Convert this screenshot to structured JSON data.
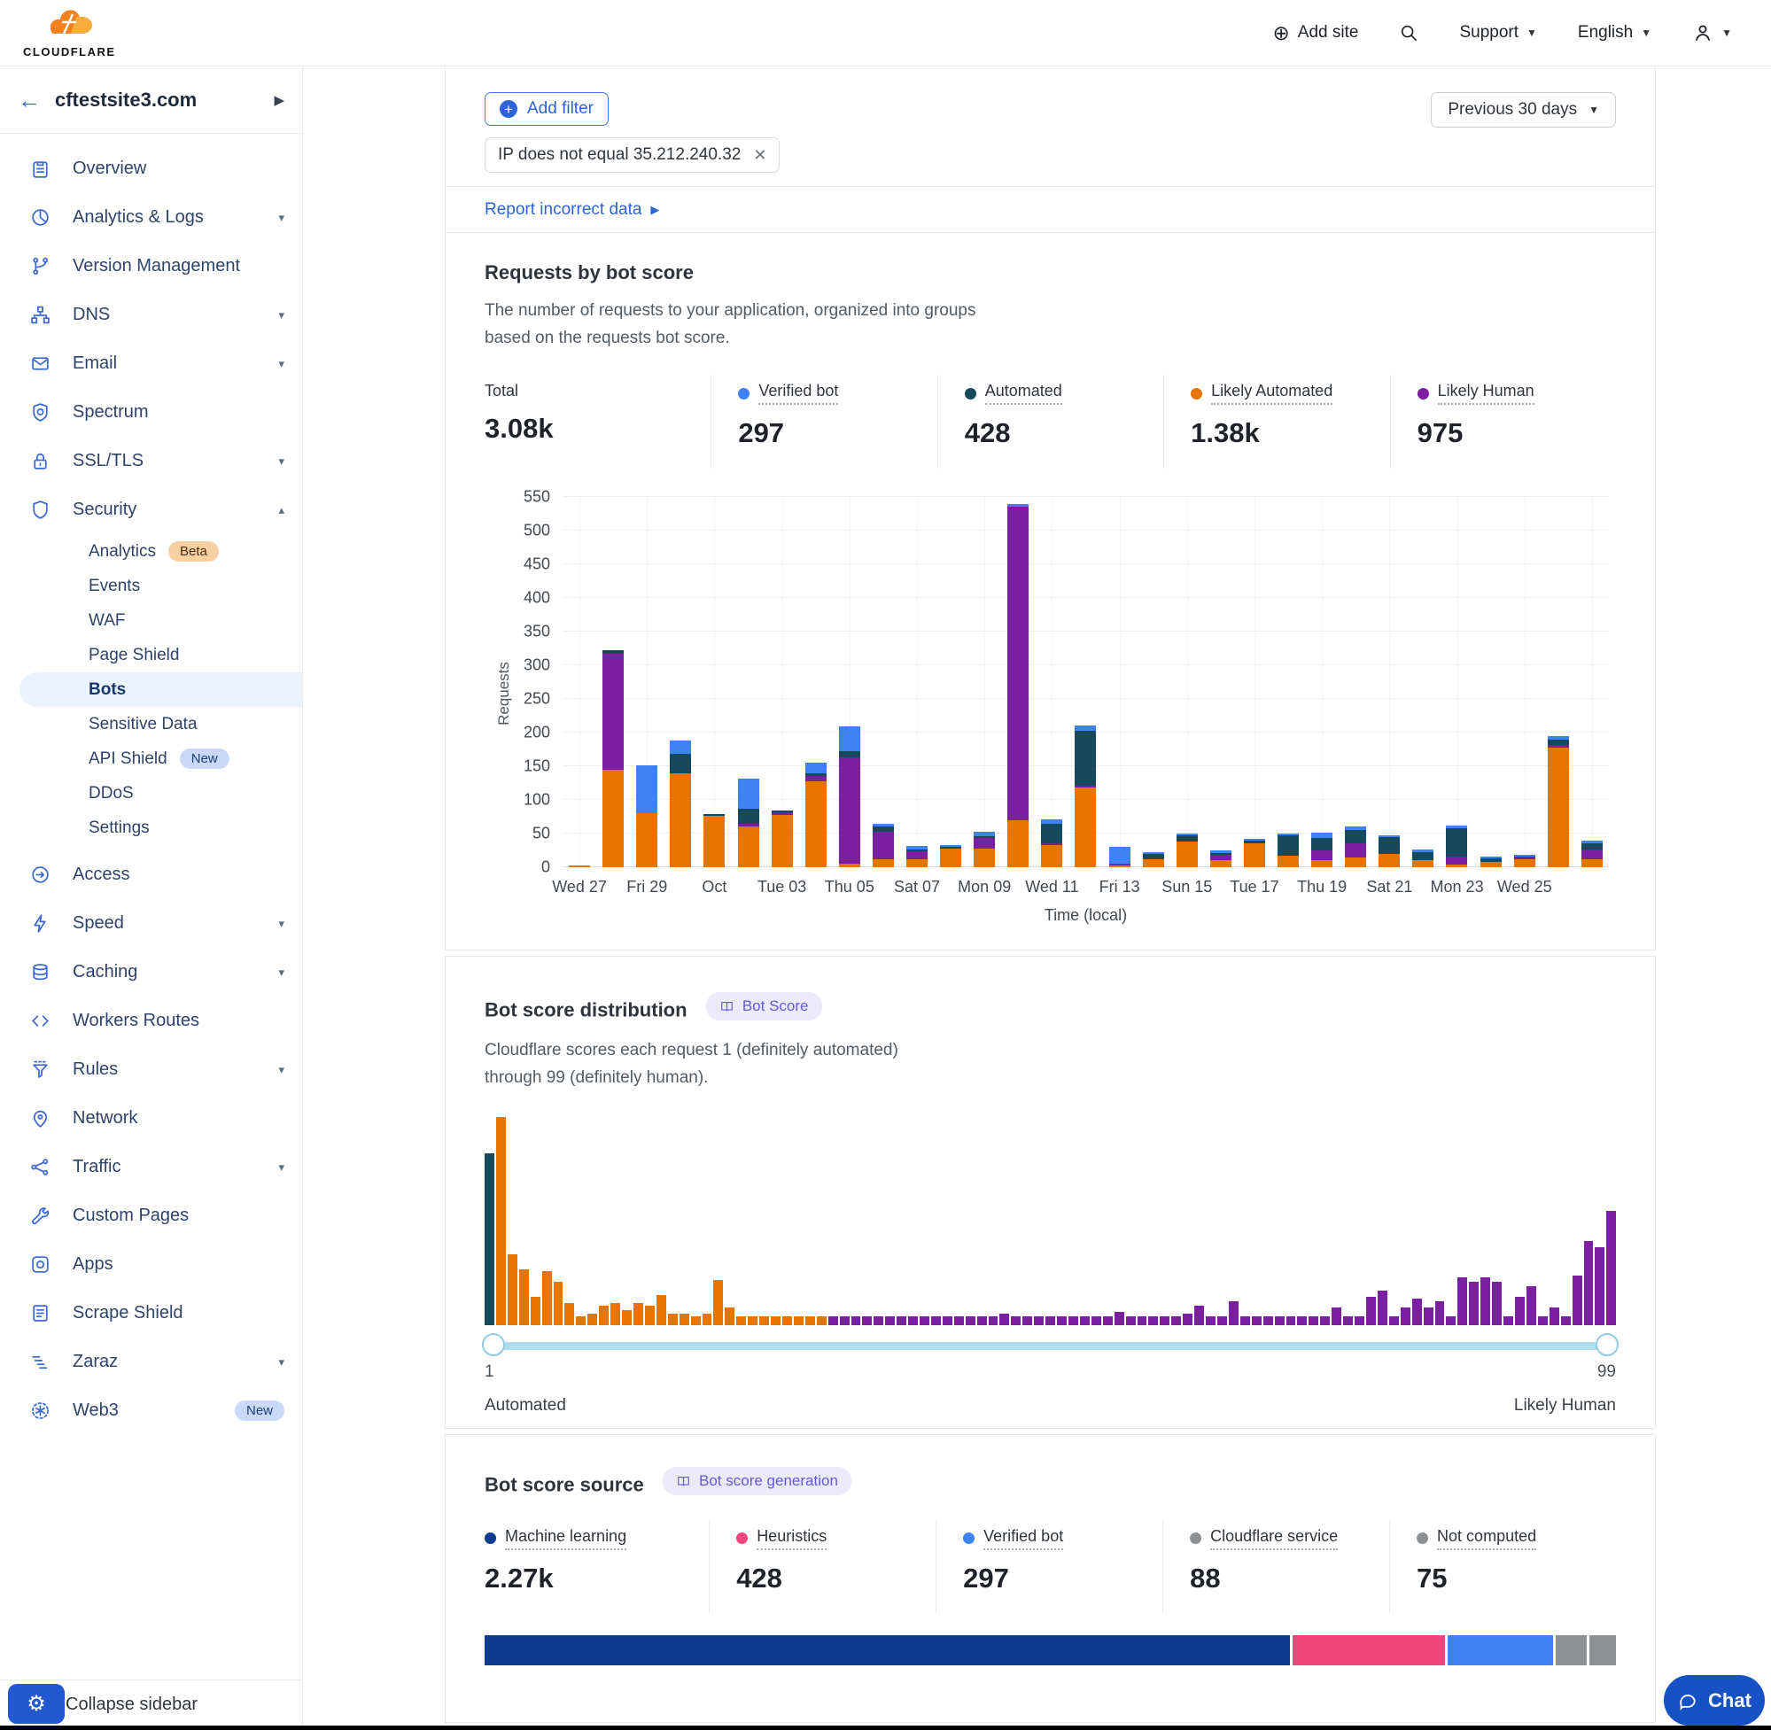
{
  "topnav": {
    "brand": "CLOUDFLARE",
    "add_site": "Add site",
    "support": "Support",
    "language": "English"
  },
  "sidebar": {
    "site": "cftestsite3.com",
    "collapse_label": "Collapse sidebar",
    "items": [
      {
        "label": "Overview",
        "icon": "overview"
      },
      {
        "label": "Analytics & Logs",
        "icon": "analytics",
        "chevron": "down"
      },
      {
        "label": "Version Management",
        "icon": "version"
      },
      {
        "label": "DNS",
        "icon": "dns",
        "chevron": "down"
      },
      {
        "label": "Email",
        "icon": "email",
        "chevron": "down"
      },
      {
        "label": "Spectrum",
        "icon": "spectrum"
      },
      {
        "label": "SSL/TLS",
        "icon": "ssl",
        "chevron": "down"
      },
      {
        "label": "Security",
        "icon": "security",
        "chevron": "up",
        "children": [
          {
            "label": "Analytics",
            "badge": {
              "text": "Beta",
              "type": "beta"
            }
          },
          {
            "label": "Events"
          },
          {
            "label": "WAF"
          },
          {
            "label": "Page Shield"
          },
          {
            "label": "Bots",
            "active": true
          },
          {
            "label": "Sensitive Data"
          },
          {
            "label": "API Shield",
            "badge": {
              "text": "New",
              "type": "new"
            }
          },
          {
            "label": "DDoS"
          },
          {
            "label": "Settings"
          }
        ]
      },
      {
        "label": "Access",
        "icon": "access"
      },
      {
        "label": "Speed",
        "icon": "speed",
        "chevron": "down"
      },
      {
        "label": "Caching",
        "icon": "caching",
        "chevron": "down"
      },
      {
        "label": "Workers Routes",
        "icon": "workers"
      },
      {
        "label": "Rules",
        "icon": "rules",
        "chevron": "down"
      },
      {
        "label": "Network",
        "icon": "network"
      },
      {
        "label": "Traffic",
        "icon": "traffic",
        "chevron": "down"
      },
      {
        "label": "Custom Pages",
        "icon": "custom-pages"
      },
      {
        "label": "Apps",
        "icon": "apps"
      },
      {
        "label": "Scrape Shield",
        "icon": "scrape-shield"
      },
      {
        "label": "Zaraz",
        "icon": "zaraz",
        "chevron": "down"
      },
      {
        "label": "Web3",
        "icon": "web3",
        "badge": {
          "text": "New",
          "type": "new"
        }
      }
    ]
  },
  "filters": {
    "add_filter_label": "Add filter",
    "chip_text": "IP does not equal 35.212.240.32",
    "range_label": "Previous 30 days",
    "report_link": "Report incorrect data"
  },
  "requests_card": {
    "title": "Requests by bot score",
    "description": "The number of requests to your application, organized into groups based on the requests bot score.",
    "stats": [
      {
        "label": "Total",
        "value": "3.08k",
        "dot": null
      },
      {
        "label": "Verified bot",
        "value": "297",
        "dot": "#3E82F7"
      },
      {
        "label": "Automated",
        "value": "428",
        "dot": "#16495B"
      },
      {
        "label": "Likely Automated",
        "value": "1.38k",
        "dot": "#E87400"
      },
      {
        "label": "Likely Human",
        "value": "975",
        "dot": "#7A1FA2"
      }
    ],
    "chart_data": {
      "type": "bar",
      "stacked": true,
      "ylabel": "Requests",
      "xlabel": "Time (local)",
      "ylim": [
        0,
        550
      ],
      "ytick_step": 50,
      "x_tick_labels": [
        "Wed 27",
        "Fri 29",
        "Oct",
        "Tue 03",
        "Thu 05",
        "Sat 07",
        "Mon 09",
        "Wed 11",
        "Fri 13",
        "Sun 15",
        "Tue 17",
        "Thu 19",
        "Sat 21",
        "Mon 23",
        "Wed 25"
      ],
      "series": [
        {
          "name": "Likely Automated",
          "color": "#E87400",
          "values": [
            3,
            145,
            80,
            140,
            76,
            60,
            77,
            128,
            5,
            12,
            12,
            27,
            27,
            70,
            33,
            118,
            2,
            12,
            38,
            10,
            35,
            17,
            10,
            15,
            20,
            10,
            4,
            8,
            12,
            178,
            12
          ]
        },
        {
          "name": "Likely Human",
          "color": "#7A1FA2",
          "values": [
            0,
            172,
            0,
            0,
            0,
            4,
            4,
            7,
            158,
            41,
            12,
            0,
            16,
            465,
            3,
            3,
            3,
            0,
            0,
            8,
            0,
            0,
            15,
            20,
            0,
            0,
            12,
            0,
            2,
            3,
            15
          ]
        },
        {
          "name": "Automated",
          "color": "#16495B",
          "values": [
            0,
            5,
            0,
            28,
            3,
            23,
            3,
            5,
            10,
            7,
            3,
            3,
            3,
            0,
            29,
            82,
            0,
            8,
            10,
            3,
            4,
            30,
            18,
            20,
            25,
            12,
            42,
            5,
            2,
            8,
            8
          ]
        },
        {
          "name": "Verified bot",
          "color": "#3E82F7",
          "values": [
            0,
            0,
            71,
            20,
            0,
            45,
            0,
            15,
            36,
            5,
            4,
            3,
            7,
            5,
            6,
            8,
            25,
            3,
            2,
            4,
            3,
            3,
            8,
            5,
            3,
            5,
            4,
            3,
            2,
            6,
            4
          ]
        }
      ]
    }
  },
  "distribution_card": {
    "title": "Bot score distribution",
    "badge": "Bot Score",
    "description_line1": "Cloudflare scores each request 1 (definitely automated)",
    "description_line2": "through 99 (definitely human).",
    "slider": {
      "min_value": "1",
      "min_label": "Automated",
      "max_value": "99",
      "max_label": "Likely Human"
    },
    "chart_data": {
      "type": "bar",
      "subtype": "histogram",
      "x_range": [
        1,
        99
      ],
      "colors": {
        "automated": "#16495B",
        "likely_automated": "#E87400",
        "likely_human": "#7A1FA2"
      },
      "color_rule": "score 1 = automated, scores 2-30 = likely_automated, scores 31-99 = likely_human",
      "values": [
        80,
        97,
        33,
        26,
        13,
        25,
        20,
        10,
        4,
        5,
        9,
        10,
        7,
        10,
        9,
        14,
        5,
        5,
        4,
        5,
        21,
        8,
        4,
        4,
        4,
        4,
        4,
        4,
        4,
        4,
        4,
        4,
        4,
        4,
        4,
        4,
        4,
        4,
        4,
        4,
        4,
        4,
        4,
        4,
        4,
        5,
        4,
        4,
        4,
        4,
        4,
        4,
        4,
        4,
        4,
        6,
        4,
        4,
        4,
        4,
        4,
        5,
        9,
        4,
        4,
        11,
        4,
        4,
        4,
        4,
        4,
        4,
        4,
        4,
        8,
        4,
        4,
        13,
        16,
        4,
        8,
        12,
        8,
        11,
        4,
        22,
        20,
        22,
        20,
        4,
        13,
        18,
        4,
        8,
        4,
        23,
        39,
        36,
        53
      ]
    }
  },
  "source_card": {
    "title": "Bot score source",
    "badge": "Bot score generation",
    "stats": [
      {
        "label": "Machine learning",
        "value": "2.27k",
        "dot": "#0C3B8F"
      },
      {
        "label": "Heuristics",
        "value": "428",
        "dot": "#F0447C"
      },
      {
        "label": "Verified bot",
        "value": "297",
        "dot": "#3E82F7"
      },
      {
        "label": "Cloudflare service",
        "value": "88",
        "dot": "#8D9093"
      },
      {
        "label": "Not computed",
        "value": "75",
        "dot": "#8D9093"
      }
    ],
    "chart_data": {
      "type": "bar",
      "subtype": "horizontal-stacked",
      "segments": [
        {
          "label": "Machine learning",
          "value": 2270,
          "color": "#0C3B8F"
        },
        {
          "label": "Heuristics",
          "value": 428,
          "color": "#F0447C"
        },
        {
          "label": "Verified bot",
          "value": 297,
          "color": "#3E82F7"
        },
        {
          "label": "Cloudflare service",
          "value": 88,
          "color": "#8D9093"
        },
        {
          "label": "Not computed",
          "value": 75,
          "color": "#8D9093"
        }
      ]
    }
  },
  "chat_label": "Chat"
}
